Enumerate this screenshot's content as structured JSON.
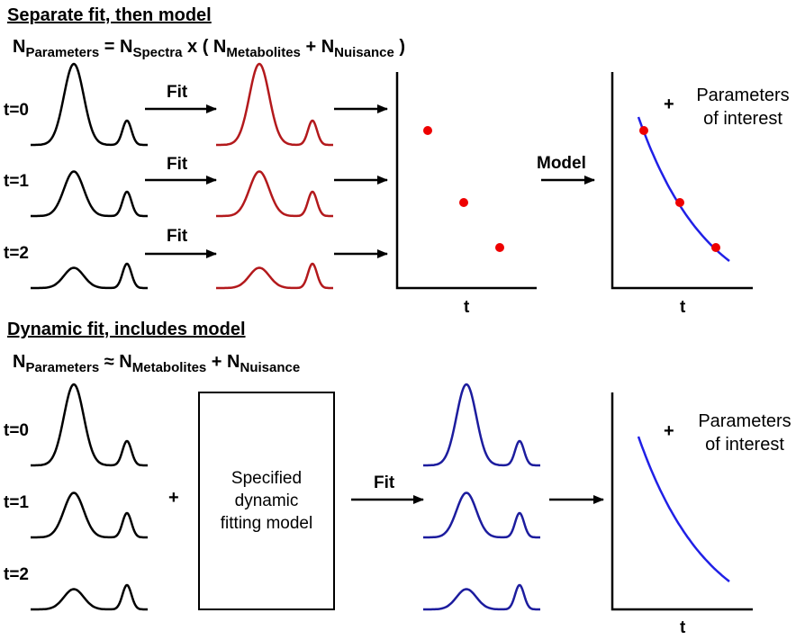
{
  "top": {
    "header": "Separate fit, then model",
    "formula": {
      "lhs": "N",
      "lhs_sub": "Parameters",
      "eq": " = ",
      "t1": "N",
      "t1_sub": "Spectra",
      "mid": " x ( ",
      "t2": "N",
      "t2_sub": "Metabolites",
      "plus": " + ",
      "t3": "N",
      "t3_sub": "Nuisance",
      "end": " )"
    },
    "time_labels": [
      "t=0",
      "t=1",
      "t=2"
    ],
    "fit_label": "Fit",
    "model_label": "Model",
    "axis_label_left": "t",
    "axis_label_right": "t",
    "plus": "+",
    "params_line1": "Parameters",
    "params_line2": "of interest"
  },
  "bottom": {
    "header": "Dynamic fit, includes model",
    "formula": {
      "lhs": "N",
      "lhs_sub": "Parameters",
      "eq": " ≈ ",
      "t1": "N",
      "t1_sub": "Metabolites",
      "plus": " + ",
      "t2": "N",
      "t2_sub": "Nuisance"
    },
    "time_labels": [
      "t=0",
      "t=1",
      "t=2"
    ],
    "plus_join": "+",
    "box_line1": "Specified",
    "box_line2": "dynamic",
    "box_line3": "fitting model",
    "fit_label": "Fit",
    "axis_label": "t",
    "plus": "+",
    "params_line1": "Parameters",
    "params_line2": "of interest"
  },
  "colors": {
    "raw_spectra": "#000000",
    "fitted_separate": "#b3191c",
    "fitted_dynamic": "#1c1c9e",
    "points": "#ee0000",
    "model_curve": "#2020e6"
  },
  "spectra": {
    "big_peak_heights": [
      1.0,
      0.55,
      0.25
    ],
    "small_peak_height": 0.3
  }
}
